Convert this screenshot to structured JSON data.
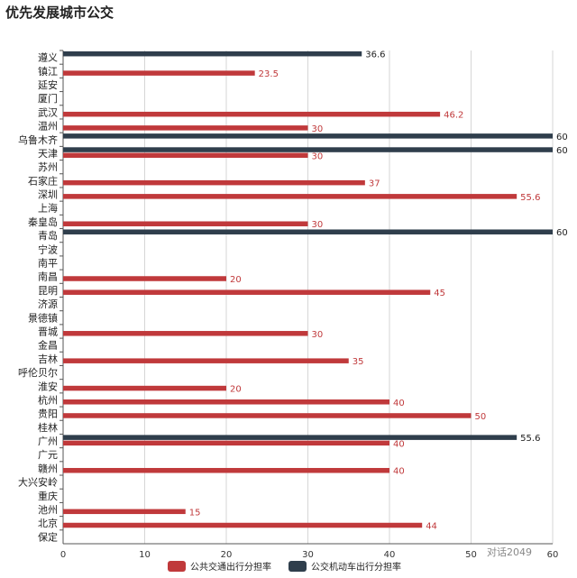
{
  "chart_data": {
    "type": "bar",
    "orientation": "horizontal",
    "title": "优先发展城市公交",
    "categories": [
      "遵义",
      "镇江",
      "延安",
      "厦门",
      "武汉",
      "温州",
      "乌鲁木齐",
      "天津",
      "苏州",
      "石家庄",
      "深圳",
      "上海",
      "秦皇岛",
      "青岛",
      "宁波",
      "南平",
      "南昌",
      "昆明",
      "济源",
      "景德镇",
      "晋城",
      "金昌",
      "吉林",
      "呼伦贝尔",
      "淮安",
      "杭州",
      "贵阳",
      "桂林",
      "广州",
      "广元",
      "赣州",
      "大兴安岭",
      "重庆",
      "池州",
      "北京",
      "保定"
    ],
    "series": [
      {
        "name": "公共交通出行分担率",
        "color": "#c0393b",
        "values": [
          null,
          23.5,
          null,
          null,
          46.2,
          30,
          null,
          30,
          null,
          37,
          55.6,
          null,
          30,
          null,
          null,
          null,
          20,
          45,
          null,
          null,
          30,
          null,
          35,
          null,
          20,
          40,
          50,
          null,
          40,
          null,
          40,
          null,
          null,
          15,
          44,
          null
        ]
      },
      {
        "name": "公交机动车出行分担率",
        "color": "#2f3e4c",
        "values": [
          36.6,
          null,
          null,
          null,
          null,
          null,
          60,
          60,
          null,
          null,
          null,
          null,
          null,
          60,
          null,
          null,
          null,
          null,
          null,
          null,
          null,
          null,
          null,
          null,
          null,
          null,
          null,
          null,
          55.6,
          null,
          null,
          null,
          null,
          null,
          null,
          null
        ]
      }
    ],
    "xlim": [
      0,
      60
    ],
    "xticks": [
      0,
      10,
      20,
      30,
      40,
      50,
      60
    ],
    "grid": true,
    "legend_position": "bottom"
  },
  "watermark": "对话2049"
}
